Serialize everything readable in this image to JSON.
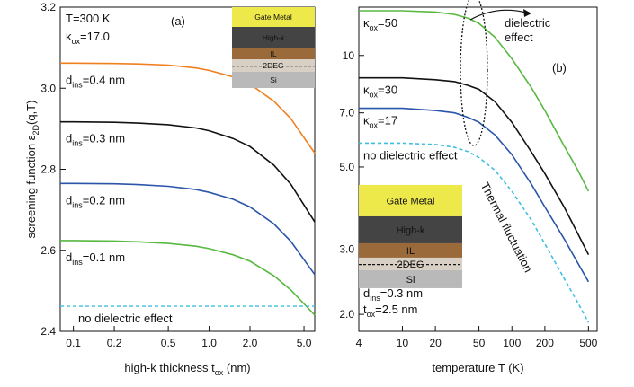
{
  "chart_data": [
    {
      "panel": "a",
      "type": "line",
      "x_scale": "log",
      "xlabel": "high-k thickness t",
      "xlabel_sub": "ox",
      "xlabel_unit": " (nm)",
      "ylabel": "screening function ε",
      "ylabel_sub": "2D",
      "ylabel_tail": "(q,T)",
      "xlim": [
        0.08,
        6.0
      ],
      "ylim": [
        2.4,
        3.2
      ],
      "xticks": [
        0.1,
        0.2,
        0.5,
        1.0,
        2.0,
        5.0
      ],
      "xtick_labels": [
        "0.1",
        "0.2",
        "0.5",
        "1.0",
        "2.0",
        "5.0"
      ],
      "yticks": [
        2.4,
        2.6,
        2.8,
        3.0,
        3.2
      ],
      "ytick_labels": [
        "2.4",
        "2.6",
        "2.8",
        "3.0",
        "3.2"
      ],
      "params": {
        "temp": "T=300 K",
        "kappa_sym": "κ",
        "kappa_sub": "ox",
        "kappa_val": "=17.0"
      },
      "panel_label": "(a)",
      "x": [
        0.08,
        0.1,
        0.2,
        0.3,
        0.5,
        0.8,
        1.0,
        1.5,
        2.0,
        3.0,
        4.0,
        6.0
      ],
      "series": [
        {
          "name": "d_ins=0.4 nm",
          "label_main": "d",
          "label_sub": "ins",
          "label_rest": "=0.4 nm",
          "color": "#f07f1e",
          "values": [
            3.062,
            3.062,
            3.061,
            3.06,
            3.057,
            3.05,
            3.044,
            3.028,
            3.01,
            2.968,
            2.925,
            2.84
          ]
        },
        {
          "name": "d_ins=0.3 nm",
          "label_main": "d",
          "label_sub": "ins",
          "label_rest": "=0.3 nm",
          "color": "#111111",
          "values": [
            2.917,
            2.917,
            2.916,
            2.914,
            2.91,
            2.902,
            2.895,
            2.876,
            2.856,
            2.81,
            2.763,
            2.67
          ]
        },
        {
          "name": "d_ins=0.2 nm",
          "label_main": "d",
          "label_sub": "ins",
          "label_rest": "=0.2 nm",
          "color": "#2a55a8",
          "values": [
            2.765,
            2.765,
            2.764,
            2.762,
            2.758,
            2.75,
            2.743,
            2.726,
            2.707,
            2.665,
            2.622,
            2.54
          ]
        },
        {
          "name": "d_ins=0.1 nm",
          "label_main": "d",
          "label_sub": "ins",
          "label_rest": "=0.1 nm",
          "color": "#58b840",
          "values": [
            2.624,
            2.624,
            2.623,
            2.621,
            2.617,
            2.61,
            2.604,
            2.589,
            2.573,
            2.537,
            2.502,
            2.44
          ]
        }
      ],
      "reference": {
        "name": "no dielectric effect",
        "value": 2.462,
        "color": "#3fbfe0"
      },
      "inset_layers": [
        "Gate Metal",
        "High-k",
        "IL",
        "2DEG",
        "Si"
      ]
    },
    {
      "panel": "b",
      "type": "line",
      "x_scale": "log",
      "y_scale": "log",
      "xlabel": "temperature T (K)",
      "xlim": [
        4,
        600
      ],
      "ylim": [
        1.8,
        13.5
      ],
      "xticks": [
        4,
        10,
        20,
        50,
        100,
        200,
        500
      ],
      "xtick_labels": [
        "4",
        "10",
        "20",
        "50",
        "100",
        "200",
        "500"
      ],
      "yticks": [
        2.0,
        3.0,
        5.0,
        7.0,
        10
      ],
      "ytick_labels": [
        "2.0",
        "3.0",
        "5.0",
        "7.0",
        "10"
      ],
      "panel_label": "(b)",
      "x": [
        4,
        10,
        20,
        30,
        40,
        50,
        70,
        100,
        150,
        200,
        300,
        400,
        500
      ],
      "series": [
        {
          "name": "κ_ox=50",
          "label_main": "κ",
          "label_sub": "ox",
          "label_rest": "=50",
          "color": "#58b840",
          "values": [
            13.2,
            13.2,
            13.1,
            12.9,
            12.6,
            12.2,
            11.2,
            9.8,
            8.2,
            7.1,
            5.7,
            4.9,
            4.3
          ]
        },
        {
          "name": "κ_ox=30",
          "label_main": "κ",
          "label_sub": "ox",
          "label_rest": "=30",
          "color": "#111111",
          "values": [
            8.7,
            8.7,
            8.6,
            8.5,
            8.3,
            8.1,
            7.5,
            6.6,
            5.5,
            4.8,
            3.9,
            3.3,
            2.9
          ]
        },
        {
          "name": "κ_ox=17",
          "label_main": "κ",
          "label_sub": "ox",
          "label_rest": "=17",
          "color": "#2a55a8",
          "values": [
            7.2,
            7.2,
            7.1,
            7.0,
            6.8,
            6.6,
            6.1,
            5.4,
            4.5,
            3.9,
            3.2,
            2.75,
            2.45
          ]
        },
        {
          "name": "no dielectric effect",
          "label_main": "no dielectric effect",
          "label_sub": "",
          "label_rest": "",
          "color": "#3fbfe0",
          "dashed": true,
          "values": [
            5.8,
            5.8,
            5.75,
            5.65,
            5.5,
            5.3,
            4.9,
            4.3,
            3.6,
            3.1,
            2.5,
            2.15,
            1.9
          ]
        }
      ],
      "annotations": {
        "dielectric": [
          "dielectric",
          "effect"
        ],
        "thermal": "Thermal fluctuation"
      },
      "params": {
        "d_main": "d",
        "d_sub": "ins",
        "d_rest": "=0.3 nm",
        "t_main": "t",
        "t_sub": "ox",
        "t_rest": "=2.5 nm"
      },
      "inset_layers": [
        "Gate Metal",
        "High-k",
        "IL",
        "2DEG",
        "Si"
      ]
    }
  ],
  "colors": {
    "gate": "#eee94b",
    "highk": "#444444",
    "il": "#9b6a3a",
    "deg": "#d8d0c4",
    "si": "#b9b9b9"
  }
}
